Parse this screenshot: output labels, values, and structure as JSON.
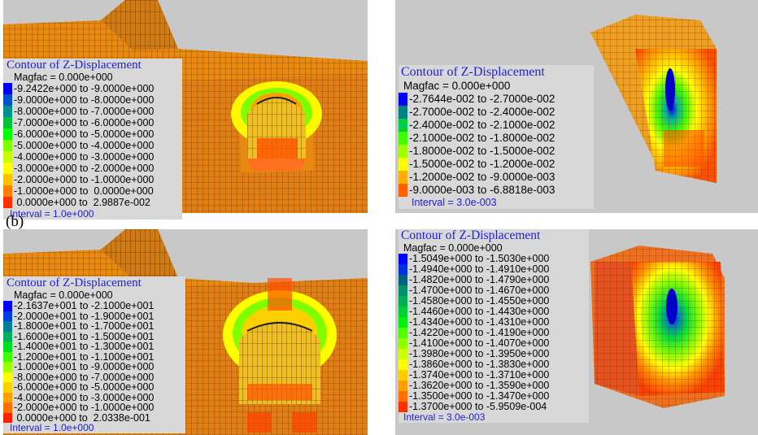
{
  "figure_label": "(b)",
  "icons": {
    "panel_markers": "small-green-vertex-marker"
  },
  "panels": [
    {
      "id": "top-left",
      "legend": {
        "title": "Contour of Z-Displacement",
        "magfac": "Magfac =  0.000e+000",
        "interval": "Interval =  1.0e+000",
        "rows": [
          {
            "label": "-9.2422e+000 to -9.0000e+000",
            "color": "#0000ff"
          },
          {
            "label": "-9.0000e+000 to -8.0000e+000",
            "color": "#0050d0"
          },
          {
            "label": "-8.0000e+000 to -7.0000e+000",
            "color": "#009090"
          },
          {
            "label": "-7.0000e+000 to -6.0000e+000",
            "color": "#00c040"
          },
          {
            "label": "-6.0000e+000 to -5.0000e+000",
            "color": "#00ff00"
          },
          {
            "label": "-5.0000e+000 to -4.0000e+000",
            "color": "#80ff00"
          },
          {
            "label": "-4.0000e+000 to -3.0000e+000",
            "color": "#c8ff00"
          },
          {
            "label": "-3.0000e+000 to -2.0000e+000",
            "color": "#ffff00"
          },
          {
            "label": "-2.0000e+000 to -1.0000e+000",
            "color": "#ffc000"
          },
          {
            "label": "-1.0000e+000 to  0.0000e+000",
            "color": "#ff8000"
          },
          {
            "label": " 0.0000e+000 to  2.9887e-002",
            "color": "#ff3000"
          }
        ]
      }
    },
    {
      "id": "top-right",
      "legend": {
        "title": "Contour of Z-Displacement",
        "magfac": "Magfac =  0.000e+000",
        "interval": "Interval =  3.0e-003",
        "rows": [
          {
            "label": "-2.7644e-002 to -2.7000e-002",
            "color": "#0000ff"
          },
          {
            "label": "-2.7000e-002 to -2.4000e-002",
            "color": "#008080"
          },
          {
            "label": "-2.4000e-002 to -2.1000e-002",
            "color": "#00d040"
          },
          {
            "label": "-2.1000e-002 to -1.8000e-002",
            "color": "#40ff00"
          },
          {
            "label": "-1.8000e-002 to -1.5000e-002",
            "color": "#a0ff00"
          },
          {
            "label": "-1.5000e-002 to -1.2000e-002",
            "color": "#ffff00"
          },
          {
            "label": "-1.2000e-002 to -9.0000e-003",
            "color": "#ffb000"
          },
          {
            "label": "-9.0000e-003 to -6.8818e-003",
            "color": "#ff6000"
          }
        ]
      }
    },
    {
      "id": "bottom-left",
      "legend": {
        "title": "Contour of Z-Displacement",
        "magfac": "Magfac =  0.000e+000",
        "interval": "Interval =  1.0e+000",
        "rows": [
          {
            "label": "-2.1637e+001 to -2.1000e+001",
            "color": "#0000ff"
          },
          {
            "label": "-2.0000e+001 to -1.9000e+001",
            "color": "#0040e0"
          },
          {
            "label": "-1.8000e+001 to -1.7000e+001",
            "color": "#008090"
          },
          {
            "label": "-1.6000e+001 to -1.5000e+001",
            "color": "#00b060"
          },
          {
            "label": "-1.4000e+001 to -1.3000e+001",
            "color": "#00e020"
          },
          {
            "label": "-1.2000e+001 to -1.1000e+001",
            "color": "#40ff00"
          },
          {
            "label": "-1.0000e+001 to -9.0000e+000",
            "color": "#a0ff00"
          },
          {
            "label": "-8.0000e+000 to -7.0000e+000",
            "color": "#ffff00"
          },
          {
            "label": "-6.0000e+000 to -5.0000e+000",
            "color": "#ffd000"
          },
          {
            "label": "-4.0000e+000 to -3.0000e+000",
            "color": "#ffa000"
          },
          {
            "label": "-2.0000e+000 to -1.0000e+000",
            "color": "#ff7000"
          },
          {
            "label": " 0.0000e+000 to  2.0338e-001",
            "color": "#ff2000"
          }
        ]
      }
    },
    {
      "id": "bottom-right",
      "legend": {
        "title": "Contour of Z-Displacement",
        "magfac": "Magfac =  0.000e+000",
        "interval": "Interval =  3.0e-003",
        "rows": [
          {
            "label": "-1.5049e+000 to -1.5030e+000",
            "color": "#0000ff"
          },
          {
            "label": "-1.4940e+000 to -1.4910e+000",
            "color": "#0030e0"
          },
          {
            "label": "-1.4820e+000 to -1.4790e+000",
            "color": "#006080"
          },
          {
            "label": "-1.4700e+000 to -1.4670e+000",
            "color": "#009070"
          },
          {
            "label": "-1.4580e+000 to -1.4550e+000",
            "color": "#00b050"
          },
          {
            "label": "-1.4460e+000 to -1.4430e+000",
            "color": "#00d030"
          },
          {
            "label": "-1.4340e+000 to -1.4310e+000",
            "color": "#00f010"
          },
          {
            "label": "-1.4220e+000 to -1.4190e+000",
            "color": "#50ff00"
          },
          {
            "label": "-1.4100e+000 to -1.4070e+000",
            "color": "#90ff00"
          },
          {
            "label": "-1.3980e+000 to -1.3950e+000",
            "color": "#d0ff00"
          },
          {
            "label": "-1.3860e+000 to -1.3830e+000",
            "color": "#ffff00"
          },
          {
            "label": "-1.3740e+000 to -1.3710e+000",
            "color": "#ffd000"
          },
          {
            "label": "-1.3620e+000 to -1.3590e+000",
            "color": "#ffa000"
          },
          {
            "label": "-1.3500e+000 to -1.3470e+000",
            "color": "#ff7000"
          },
          {
            "label": "-1.3700e+000 to -5.9509e-004",
            "color": "#ff3000"
          }
        ]
      }
    }
  ]
}
